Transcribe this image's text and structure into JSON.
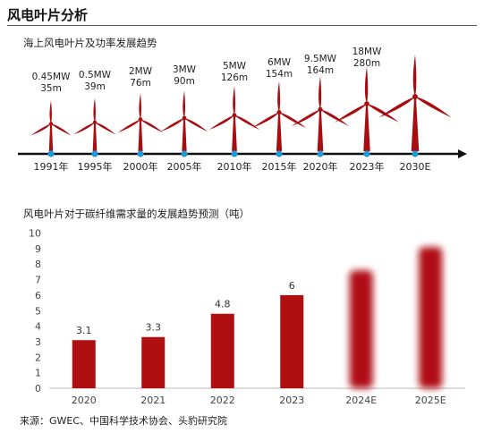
{
  "page_title": "风电叶片分析",
  "evolution": {
    "title": "海上风电叶片及功率发展趋势",
    "items": [
      {
        "year": "1991年",
        "power": "0.45MW",
        "diameter": "35m"
      },
      {
        "year": "1995年",
        "power": "0.5MW",
        "diameter": "39m"
      },
      {
        "year": "2000年",
        "power": "2MW",
        "diameter": "76m"
      },
      {
        "year": "2005年",
        "power": "3MW",
        "diameter": "90m"
      },
      {
        "year": "2010年",
        "power": "5MW",
        "diameter": "126m"
      },
      {
        "year": "2015年",
        "power": "6MW",
        "diameter": "154m"
      },
      {
        "year": "2020年",
        "power": "9.5MW",
        "diameter": "164m"
      },
      {
        "year": "2023年",
        "power": "18MW",
        "diameter": "280m"
      },
      {
        "year": "2030E",
        "power": "",
        "diameter": ""
      }
    ]
  },
  "demand": {
    "title": "风电叶片对于碳纤维需求量的发展趋势预测（吨）"
  },
  "chart_data": {
    "type": "bar",
    "categories": [
      "2020",
      "2021",
      "2022",
      "2023",
      "2024E",
      "2025E"
    ],
    "values": [
      3.1,
      3.3,
      4.8,
      6,
      7.6,
      9.1
    ],
    "data_labels": [
      "3.1",
      "3.3",
      "4.8",
      "6",
      "",
      ""
    ],
    "estimated_flags": [
      false,
      false,
      false,
      false,
      true,
      true
    ],
    "ylim": [
      0,
      10
    ],
    "yticks": [
      "0",
      "1",
      "2",
      "3",
      "4",
      "5",
      "6",
      "7",
      "8",
      "9",
      "10"
    ],
    "title": "风电叶片对于碳纤维需求量的发展趋势预测（吨）",
    "bar_color": "#b00f12",
    "grid": false
  },
  "source": "来源：GWEC、中国科学技术协会、头豹研究院",
  "colors": {
    "accent_red": "#a80d10",
    "timeline_dot": "#1e9bd7"
  }
}
